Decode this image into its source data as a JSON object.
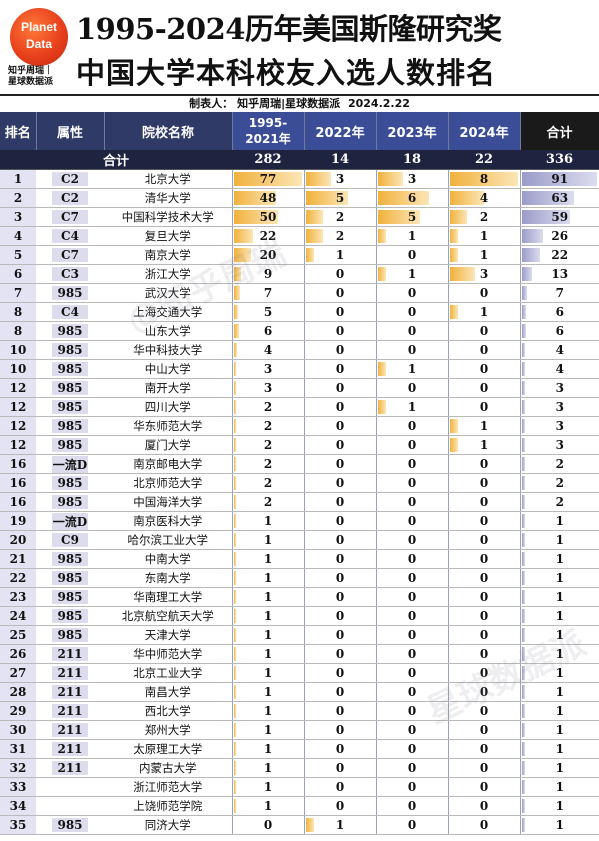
{
  "logo": {
    "line1": "Planet",
    "line2": "Data"
  },
  "brand": {
    "line1": "知乎周瑞｜",
    "line2": "星球数据派"
  },
  "title": {
    "line1": "1995-2024历年美国斯隆研究奖",
    "line2": "中国大学本科校友入选人数排名"
  },
  "maker": {
    "label": "制表人：",
    "names": "知乎周瑞|星球数据派",
    "date": "2024.2.22"
  },
  "columns": {
    "rank": "排名",
    "attr": "属性",
    "name": "院校名称",
    "p1_line1": "1995-",
    "p1_line2": "2021年",
    "y2022": "2022年",
    "y2023": "2023年",
    "y2024": "2024年",
    "total": "合计"
  },
  "totals": {
    "label": "合计",
    "p1": "282",
    "y2022": "14",
    "y2023": "18",
    "y2024": "22",
    "total": "336"
  },
  "watermark": {
    "line1": "@知乎周瑞",
    "line2": "星球数据派"
  },
  "rows": [
    {
      "rank": "1",
      "attr": "C2",
      "name": "北京大学",
      "p1": 77,
      "y2022": 3,
      "y2023": 3,
      "y2024": 8,
      "total": 91
    },
    {
      "rank": "2",
      "attr": "C2",
      "name": "清华大学",
      "p1": 48,
      "y2022": 5,
      "y2023": 6,
      "y2024": 4,
      "total": 63
    },
    {
      "rank": "3",
      "attr": "C7",
      "name": "中国科学技术大学",
      "p1": 50,
      "y2022": 2,
      "y2023": 5,
      "y2024": 2,
      "total": 59
    },
    {
      "rank": "4",
      "attr": "C4",
      "name": "复旦大学",
      "p1": 22,
      "y2022": 2,
      "y2023": 1,
      "y2024": 1,
      "total": 26
    },
    {
      "rank": "5",
      "attr": "C7",
      "name": "南京大学",
      "p1": 20,
      "y2022": 1,
      "y2023": 0,
      "y2024": 1,
      "total": 22
    },
    {
      "rank": "6",
      "attr": "C3",
      "name": "浙江大学",
      "p1": 9,
      "y2022": 0,
      "y2023": 1,
      "y2024": 3,
      "total": 13
    },
    {
      "rank": "7",
      "attr": "985",
      "name": "武汉大学",
      "p1": 7,
      "y2022": 0,
      "y2023": 0,
      "y2024": 0,
      "total": 7
    },
    {
      "rank": "8",
      "attr": "C4",
      "name": "上海交通大学",
      "p1": 5,
      "y2022": 0,
      "y2023": 0,
      "y2024": 1,
      "total": 6
    },
    {
      "rank": "8",
      "attr": "985",
      "name": "山东大学",
      "p1": 6,
      "y2022": 0,
      "y2023": 0,
      "y2024": 0,
      "total": 6
    },
    {
      "rank": "10",
      "attr": "985",
      "name": "华中科技大学",
      "p1": 4,
      "y2022": 0,
      "y2023": 0,
      "y2024": 0,
      "total": 4
    },
    {
      "rank": "10",
      "attr": "985",
      "name": "中山大学",
      "p1": 3,
      "y2022": 0,
      "y2023": 1,
      "y2024": 0,
      "total": 4
    },
    {
      "rank": "12",
      "attr": "985",
      "name": "南开大学",
      "p1": 3,
      "y2022": 0,
      "y2023": 0,
      "y2024": 0,
      "total": 3
    },
    {
      "rank": "12",
      "attr": "985",
      "name": "四川大学",
      "p1": 2,
      "y2022": 0,
      "y2023": 1,
      "y2024": 0,
      "total": 3
    },
    {
      "rank": "12",
      "attr": "985",
      "name": "华东师范大学",
      "p1": 2,
      "y2022": 0,
      "y2023": 0,
      "y2024": 1,
      "total": 3
    },
    {
      "rank": "12",
      "attr": "985",
      "name": "厦门大学",
      "p1": 2,
      "y2022": 0,
      "y2023": 0,
      "y2024": 1,
      "total": 3
    },
    {
      "rank": "16",
      "attr": "一流D",
      "name": "南京邮电大学",
      "p1": 2,
      "y2022": 0,
      "y2023": 0,
      "y2024": 0,
      "total": 2
    },
    {
      "rank": "16",
      "attr": "985",
      "name": "北京师范大学",
      "p1": 2,
      "y2022": 0,
      "y2023": 0,
      "y2024": 0,
      "total": 2
    },
    {
      "rank": "16",
      "attr": "985",
      "name": "中国海洋大学",
      "p1": 2,
      "y2022": 0,
      "y2023": 0,
      "y2024": 0,
      "total": 2
    },
    {
      "rank": "19",
      "attr": "一流D",
      "name": "南京医科大学",
      "p1": 1,
      "y2022": 0,
      "y2023": 0,
      "y2024": 0,
      "total": 1
    },
    {
      "rank": "20",
      "attr": "C9",
      "name": "哈尔滨工业大学",
      "p1": 1,
      "y2022": 0,
      "y2023": 0,
      "y2024": 0,
      "total": 1
    },
    {
      "rank": "21",
      "attr": "985",
      "name": "中南大学",
      "p1": 1,
      "y2022": 0,
      "y2023": 0,
      "y2024": 0,
      "total": 1
    },
    {
      "rank": "22",
      "attr": "985",
      "name": "东南大学",
      "p1": 1,
      "y2022": 0,
      "y2023": 0,
      "y2024": 0,
      "total": 1
    },
    {
      "rank": "23",
      "attr": "985",
      "name": "华南理工大学",
      "p1": 1,
      "y2022": 0,
      "y2023": 0,
      "y2024": 0,
      "total": 1
    },
    {
      "rank": "24",
      "attr": "985",
      "name": "北京航空航天大学",
      "p1": 1,
      "y2022": 0,
      "y2023": 0,
      "y2024": 0,
      "total": 1
    },
    {
      "rank": "25",
      "attr": "985",
      "name": "天津大学",
      "p1": 1,
      "y2022": 0,
      "y2023": 0,
      "y2024": 0,
      "total": 1
    },
    {
      "rank": "26",
      "attr": "211",
      "name": "华中师范大学",
      "p1": 1,
      "y2022": 0,
      "y2023": 0,
      "y2024": 0,
      "total": 1
    },
    {
      "rank": "27",
      "attr": "211",
      "name": "北京工业大学",
      "p1": 1,
      "y2022": 0,
      "y2023": 0,
      "y2024": 0,
      "total": 1
    },
    {
      "rank": "28",
      "attr": "211",
      "name": "南昌大学",
      "p1": 1,
      "y2022": 0,
      "y2023": 0,
      "y2024": 0,
      "total": 1
    },
    {
      "rank": "29",
      "attr": "211",
      "name": "西北大学",
      "p1": 1,
      "y2022": 0,
      "y2023": 0,
      "y2024": 0,
      "total": 1
    },
    {
      "rank": "30",
      "attr": "211",
      "name": "郑州大学",
      "p1": 1,
      "y2022": 0,
      "y2023": 0,
      "y2024": 0,
      "total": 1
    },
    {
      "rank": "31",
      "attr": "211",
      "name": "太原理工大学",
      "p1": 1,
      "y2022": 0,
      "y2023": 0,
      "y2024": 0,
      "total": 1
    },
    {
      "rank": "32",
      "attr": "211",
      "name": "内蒙古大学",
      "p1": 1,
      "y2022": 0,
      "y2023": 0,
      "y2024": 0,
      "total": 1
    },
    {
      "rank": "33",
      "attr": "",
      "name": "浙江师范大学",
      "p1": 1,
      "y2022": 0,
      "y2023": 0,
      "y2024": 0,
      "total": 1
    },
    {
      "rank": "34",
      "attr": "",
      "name": "上饶师范学院",
      "p1": 1,
      "y2022": 0,
      "y2023": 0,
      "y2024": 0,
      "total": 1
    },
    {
      "rank": "35",
      "attr": "985",
      "name": "同济大学",
      "p1": 0,
      "y2022": 1,
      "y2023": 0,
      "y2024": 0,
      "total": 1
    }
  ]
}
